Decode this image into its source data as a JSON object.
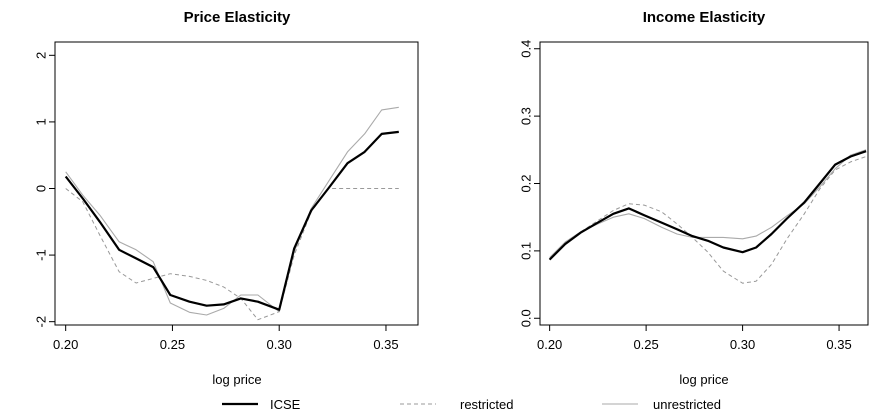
{
  "chart_data": [
    {
      "type": "line",
      "title": "Price Elasticity",
      "xlabel": "log price",
      "ylabel": "",
      "xlim": [
        0.195,
        0.365
      ],
      "ylim": [
        -2.05,
        2.2
      ],
      "xticks": [
        0.2,
        0.25,
        0.3,
        0.35
      ],
      "xtick_labels": [
        "0.20",
        "0.25",
        "0.30",
        "0.35"
      ],
      "yticks": [
        -2,
        -1,
        0,
        1,
        2
      ],
      "ytick_labels": [
        "-2",
        "-1",
        "0",
        "1",
        "2"
      ],
      "series": [
        {
          "name": "ICSE",
          "style": "solid-thick",
          "color": "#000000",
          "x": [
            0.2,
            0.208,
            0.216,
            0.225,
            0.233,
            0.241,
            0.249,
            0.258,
            0.266,
            0.274,
            0.282,
            0.29,
            0.3,
            0.307,
            0.315,
            0.323,
            0.332,
            0.34,
            0.348,
            0.356
          ],
          "y": [
            0.18,
            -0.15,
            -0.5,
            -0.92,
            -1.05,
            -1.18,
            -1.6,
            -1.7,
            -1.76,
            -1.74,
            -1.65,
            -1.7,
            -1.82,
            -0.9,
            -0.33,
            0.0,
            0.38,
            0.55,
            0.82,
            0.85
          ]
        },
        {
          "name": "restricted",
          "style": "dashed",
          "color": "#999999",
          "x": [
            0.2,
            0.208,
            0.216,
            0.225,
            0.233,
            0.241,
            0.249,
            0.258,
            0.266,
            0.274,
            0.282,
            0.29,
            0.3,
            0.307,
            0.315,
            0.323,
            0.332,
            0.34,
            0.348,
            0.356
          ],
          "y": [
            0.0,
            -0.2,
            -0.7,
            -1.25,
            -1.42,
            -1.35,
            -1.28,
            -1.32,
            -1.38,
            -1.48,
            -1.65,
            -1.97,
            -1.85,
            -1.0,
            -0.35,
            0.0,
            0.0,
            0.0,
            0.0,
            0.0
          ]
        },
        {
          "name": "unrestricted",
          "style": "solid-thin",
          "color": "#aaaaaa",
          "x": [
            0.2,
            0.208,
            0.216,
            0.225,
            0.233,
            0.241,
            0.249,
            0.258,
            0.266,
            0.274,
            0.282,
            0.29,
            0.3,
            0.307,
            0.315,
            0.323,
            0.332,
            0.34,
            0.348,
            0.356
          ],
          "y": [
            0.25,
            -0.1,
            -0.4,
            -0.8,
            -0.92,
            -1.1,
            -1.72,
            -1.86,
            -1.9,
            -1.8,
            -1.6,
            -1.6,
            -1.85,
            -0.95,
            -0.3,
            0.1,
            0.55,
            0.82,
            1.18,
            1.22
          ]
        }
      ],
      "grid": false,
      "legend_position": "bottom"
    },
    {
      "type": "line",
      "title": "Income Elasticity",
      "xlabel": "log price",
      "ylabel": "",
      "xlim": [
        0.195,
        0.365
      ],
      "ylim": [
        -0.01,
        0.41
      ],
      "xticks": [
        0.2,
        0.25,
        0.3,
        0.35
      ],
      "xtick_labels": [
        "0.20",
        "0.25",
        "0.30",
        "0.35"
      ],
      "yticks": [
        0.0,
        0.1,
        0.2,
        0.3,
        0.4
      ],
      "ytick_labels": [
        "0.0",
        "0.1",
        "0.2",
        "0.3",
        "0.4"
      ],
      "series": [
        {
          "name": "ICSE",
          "style": "solid-thick",
          "color": "#000000",
          "x": [
            0.2,
            0.208,
            0.216,
            0.225,
            0.233,
            0.241,
            0.249,
            0.258,
            0.266,
            0.274,
            0.282,
            0.29,
            0.3,
            0.307,
            0.315,
            0.323,
            0.332,
            0.34,
            0.348,
            0.356,
            0.364
          ],
          "y": [
            0.087,
            0.11,
            0.127,
            0.142,
            0.155,
            0.163,
            0.153,
            0.142,
            0.132,
            0.122,
            0.115,
            0.105,
            0.098,
            0.105,
            0.125,
            0.148,
            0.172,
            0.2,
            0.228,
            0.24,
            0.248
          ]
        },
        {
          "name": "restricted",
          "style": "dashed",
          "color": "#999999",
          "x": [
            0.2,
            0.208,
            0.216,
            0.225,
            0.233,
            0.241,
            0.249,
            0.258,
            0.266,
            0.274,
            0.282,
            0.29,
            0.3,
            0.307,
            0.315,
            0.323,
            0.332,
            0.34,
            0.348,
            0.356,
            0.364
          ],
          "y": [
            0.087,
            0.112,
            0.128,
            0.145,
            0.16,
            0.17,
            0.168,
            0.158,
            0.14,
            0.12,
            0.098,
            0.07,
            0.052,
            0.055,
            0.08,
            0.118,
            0.155,
            0.192,
            0.22,
            0.232,
            0.24
          ]
        },
        {
          "name": "unrestricted",
          "style": "solid-thin",
          "color": "#aaaaaa",
          "x": [
            0.2,
            0.208,
            0.216,
            0.225,
            0.233,
            0.241,
            0.249,
            0.258,
            0.266,
            0.274,
            0.282,
            0.29,
            0.3,
            0.307,
            0.315,
            0.323,
            0.332,
            0.34,
            0.348,
            0.356,
            0.364
          ],
          "y": [
            0.09,
            0.113,
            0.128,
            0.14,
            0.15,
            0.155,
            0.148,
            0.135,
            0.125,
            0.12,
            0.12,
            0.12,
            0.118,
            0.122,
            0.135,
            0.152,
            0.17,
            0.195,
            0.222,
            0.242,
            0.25
          ]
        }
      ],
      "grid": false,
      "legend_position": "bottom"
    }
  ],
  "legend": {
    "items": [
      {
        "label": "ICSE",
        "style": "solid-thick",
        "color": "#000000"
      },
      {
        "label": "restricted",
        "style": "dashed",
        "color": "#999999"
      },
      {
        "label": "unrestricted",
        "style": "solid-thin",
        "color": "#aaaaaa"
      }
    ]
  }
}
